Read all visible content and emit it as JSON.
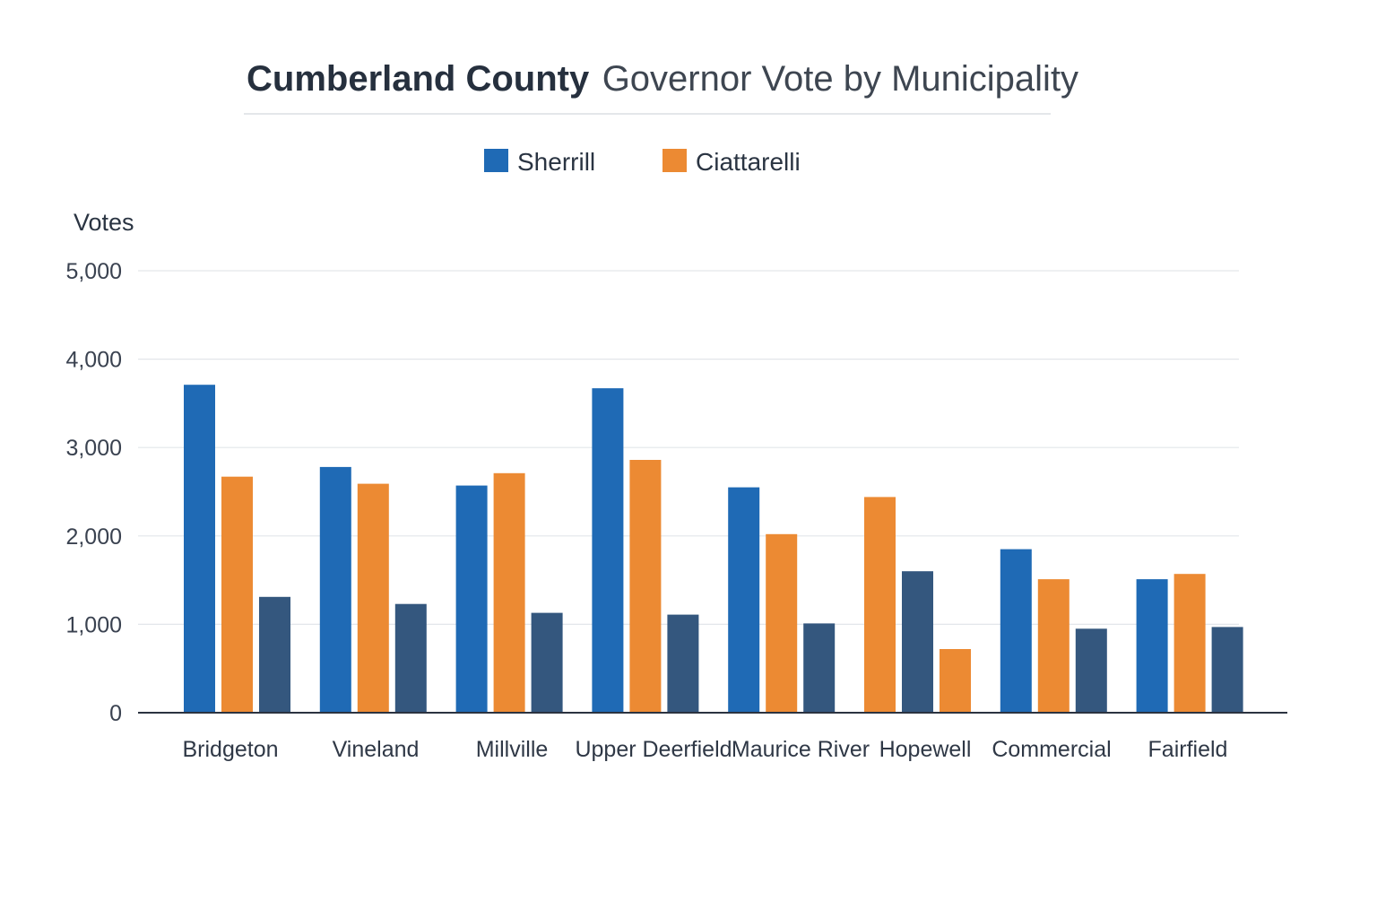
{
  "chart_data": {
    "type": "bar",
    "title_bold": "Cumberland County",
    "title_rest": "Governor Vote by Municipality",
    "ylabel": "Votes",
    "xlabel": "",
    "ylim": [
      0,
      5000
    ],
    "yticks": [
      0,
      1000,
      2000,
      3000,
      4000,
      5000
    ],
    "ytick_labels": [
      "0",
      "1,000",
      "2,000",
      "3,000",
      "4,000",
      "5,000"
    ],
    "grid": true,
    "legend_position": "top-center",
    "categories": [
      "Bridgeton",
      "Vineland",
      "Millville",
      "Upper Deerfield",
      "Maurice River",
      "Hopewell",
      "Commercial",
      "Fairfield"
    ],
    "legend": [
      {
        "label": "Sherrill",
        "color": "#1f6ab5"
      },
      {
        "label": "Ciattarelli",
        "color": "#ec8a33"
      }
    ],
    "bar_groups": [
      [
        {
          "value": 3710,
          "color": "#1f6ab5"
        },
        {
          "value": 2670,
          "color": "#ec8a33"
        },
        {
          "value": 1310,
          "color": "#34577e"
        }
      ],
      [
        {
          "value": 2780,
          "color": "#1f6ab5"
        },
        {
          "value": 2590,
          "color": "#ec8a33"
        },
        {
          "value": 1230,
          "color": "#34577e"
        }
      ],
      [
        {
          "value": 2570,
          "color": "#1f6ab5"
        },
        {
          "value": 2710,
          "color": "#ec8a33"
        },
        {
          "value": 1130,
          "color": "#34577e"
        }
      ],
      [
        {
          "value": 3670,
          "color": "#1f6ab5"
        },
        {
          "value": 2860,
          "color": "#ec8a33"
        },
        {
          "value": 1110,
          "color": "#34577e"
        }
      ],
      [
        {
          "value": 2550,
          "color": "#1f6ab5"
        },
        {
          "value": 2020,
          "color": "#ec8a33"
        },
        {
          "value": 1010,
          "color": "#34577e"
        }
      ],
      [
        {
          "value": 2440,
          "color": "#ec8a33"
        },
        {
          "value": 1600,
          "color": "#34577e"
        },
        {
          "value": 720,
          "color": "#ec8a33"
        }
      ],
      [
        {
          "value": 1850,
          "color": "#1f6ab5"
        },
        {
          "value": 1510,
          "color": "#ec8a33"
        },
        {
          "value": 950,
          "color": "#34577e"
        }
      ],
      [
        {
          "value": 1510,
          "color": "#1f6ab5"
        },
        {
          "value": 1570,
          "color": "#ec8a33"
        },
        {
          "value": 970,
          "color": "#34577e"
        }
      ]
    ]
  }
}
